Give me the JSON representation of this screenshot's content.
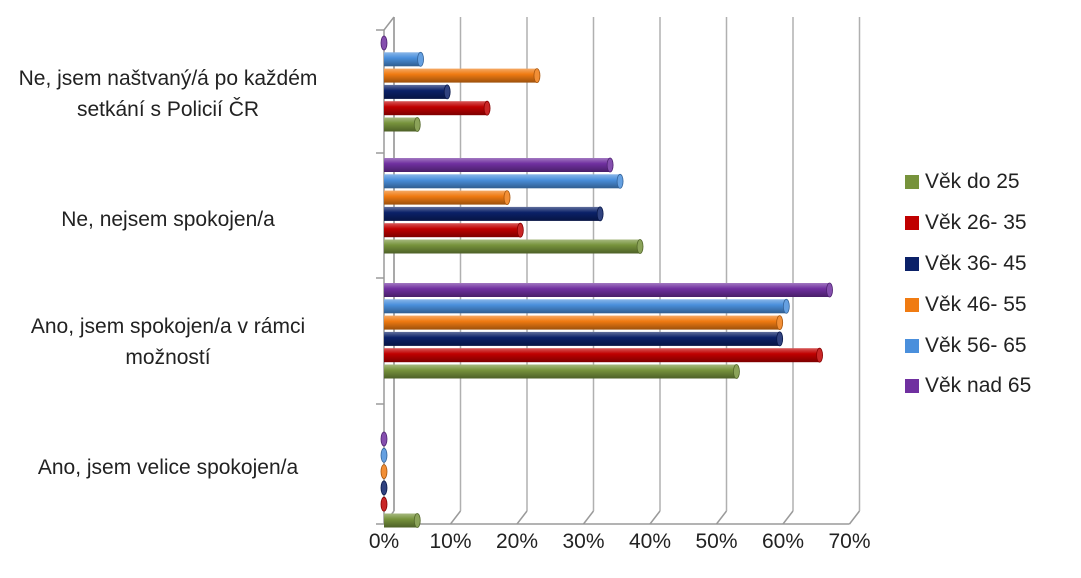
{
  "chart_data": {
    "type": "bar",
    "orientation": "horizontal",
    "style": "3d-cylinder",
    "categories": [
      "Ne, jsem naštvaný/á po každém setkání s Policií ČR",
      "Ne, nejsem spokojen/a",
      "Ano, jsem spokojen/a v rámci možností",
      "Ano, jsem velice spokojen/a"
    ],
    "category_label_lines": [
      [
        "Ne, jsem naštvaný/á po každém",
        "setkání s Policií ČR"
      ],
      [
        "Ne, nejsem spokojen/a"
      ],
      [
        "Ano, jsem spokojen/a v rámci",
        "možností"
      ],
      [
        "Ano, jsem velice spokojen/a"
      ]
    ],
    "series": [
      {
        "name": "Věk nad 65",
        "color": "#7030a0",
        "values": [
          0,
          34,
          67,
          0
        ]
      },
      {
        "name": "Věk 56- 65",
        "color": "#4a8fdc",
        "values": [
          5.5,
          35.5,
          60.5,
          0
        ]
      },
      {
        "name": "Věk 46- 55",
        "color": "#f07b12",
        "values": [
          23,
          18.5,
          59.5,
          0
        ]
      },
      {
        "name": "Věk 36- 45",
        "color": "#0b2168",
        "values": [
          9.5,
          32.5,
          59.5,
          0
        ]
      },
      {
        "name": "Věk 26- 35",
        "color": "#c00000",
        "values": [
          15.5,
          20.5,
          65.5,
          0
        ]
      },
      {
        "name": "Věk do 25",
        "color": "#77933c",
        "values": [
          5,
          38.5,
          53,
          5
        ]
      }
    ],
    "xlim": [
      0,
      70
    ],
    "ticks": [
      "0%",
      "10%",
      "20%",
      "30%",
      "40%",
      "50%",
      "60%",
      "70%"
    ],
    "grid": true,
    "legend_position": "right"
  }
}
